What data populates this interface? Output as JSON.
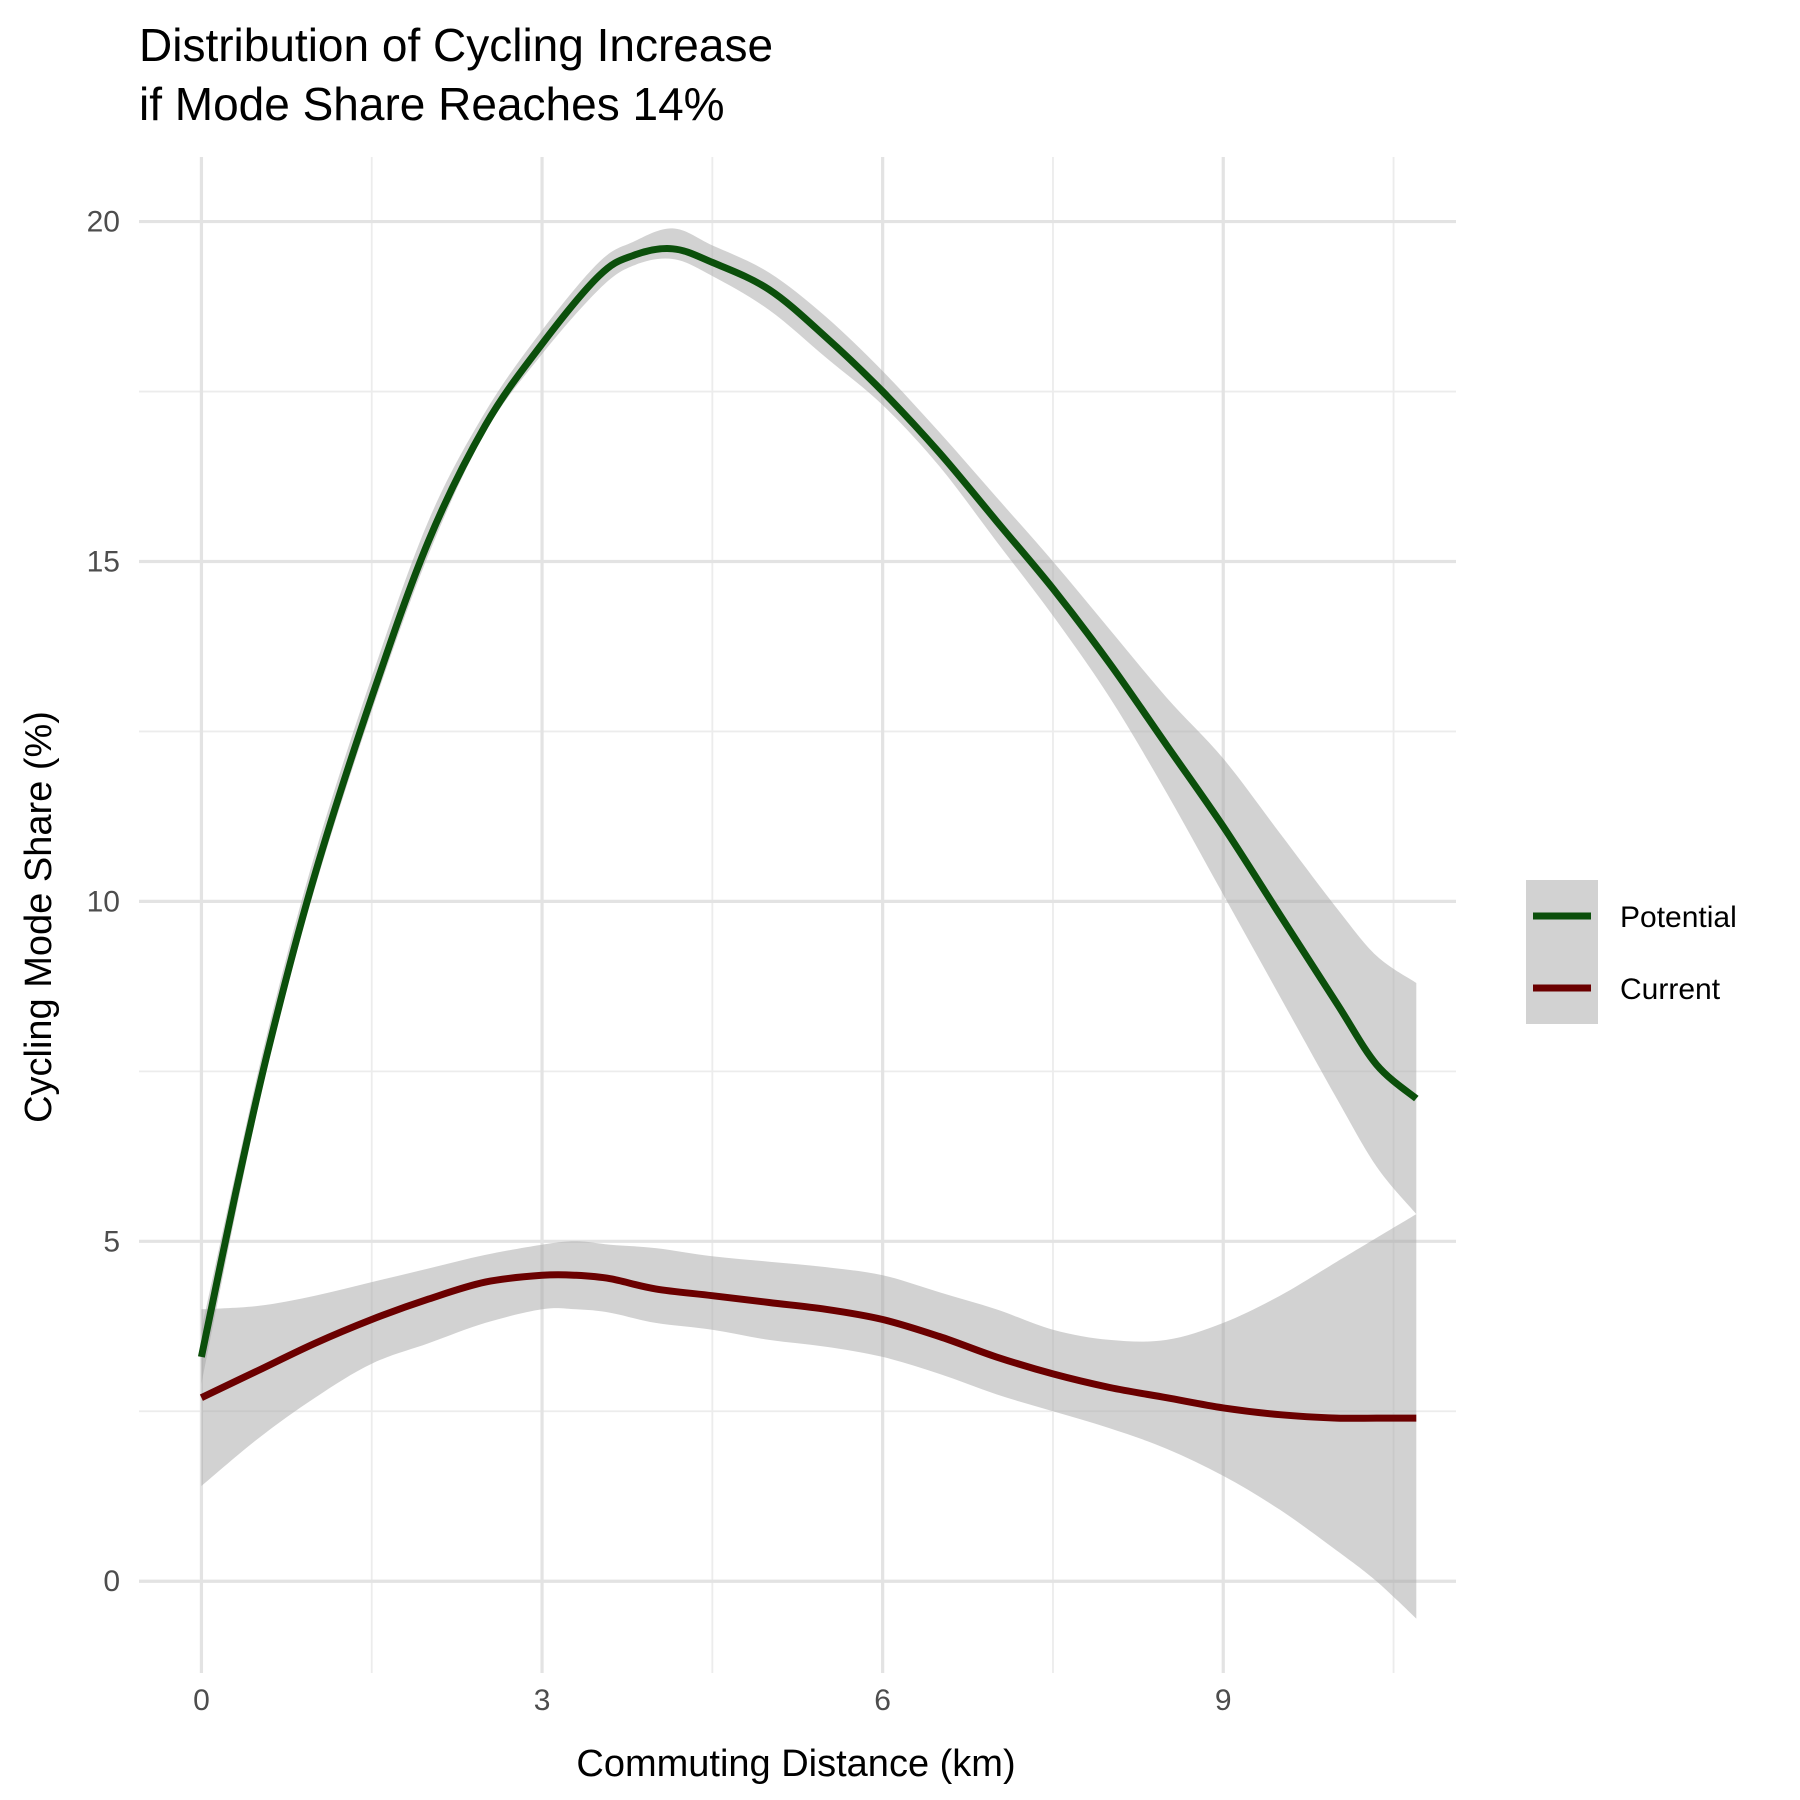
{
  "chart_data": {
    "type": "line",
    "title_lines": [
      "Distribution of Cycling Increase",
      "if Mode Share Reaches 14%"
    ],
    "xlabel": "Commuting Distance (km)",
    "ylabel": "Cycling Mode Share (%)",
    "xlim": [
      -0.55,
      11.05
    ],
    "ylim": [
      -1.35,
      20.95
    ],
    "x_ticks": [
      0,
      3,
      6,
      9
    ],
    "x_minor_ticks": [
      1.5,
      4.5,
      7.5,
      10.5
    ],
    "y_ticks": [
      0,
      5,
      10,
      15,
      20
    ],
    "y_minor_ticks": [
      2.5,
      7.5,
      12.5,
      17.5
    ],
    "grid": true,
    "legend_position": "right",
    "series": [
      {
        "name": "Potential",
        "color": "#0b4f0b",
        "x": [
          0,
          0.3,
          0.6,
          1.0,
          1.5,
          2.0,
          2.5,
          3.0,
          3.5,
          3.8,
          4.15,
          4.5,
          5.0,
          5.5,
          6.0,
          6.5,
          7.0,
          7.5,
          8.0,
          8.5,
          9.0,
          9.5,
          10.0,
          10.35,
          10.7
        ],
        "y": [
          3.3,
          5.7,
          7.9,
          10.4,
          13.0,
          15.3,
          17.0,
          18.2,
          19.2,
          19.5,
          19.6,
          19.4,
          19.0,
          18.3,
          17.5,
          16.6,
          15.6,
          14.6,
          13.5,
          12.3,
          11.1,
          9.8,
          8.5,
          7.6,
          7.1
        ],
        "lower": [
          2.9,
          5.4,
          7.7,
          10.2,
          12.8,
          15.1,
          16.9,
          18.05,
          19.0,
          19.35,
          19.45,
          19.2,
          18.7,
          18.0,
          17.3,
          16.4,
          15.3,
          14.2,
          13.0,
          11.6,
          10.1,
          8.6,
          7.1,
          6.1,
          5.4
        ],
        "upper": [
          3.7,
          6.0,
          8.2,
          10.7,
          13.3,
          15.6,
          17.2,
          18.4,
          19.4,
          19.7,
          19.9,
          19.65,
          19.25,
          18.6,
          17.8,
          16.9,
          15.95,
          15.0,
          14.0,
          13.0,
          12.1,
          11.0,
          9.9,
          9.2,
          8.8
        ]
      },
      {
        "name": "Current",
        "color": "#6b0000",
        "x": [
          0,
          0.5,
          1.0,
          1.5,
          2.0,
          2.5,
          3.0,
          3.3,
          3.6,
          4.0,
          4.5,
          5.0,
          5.5,
          6.0,
          6.5,
          7.0,
          7.5,
          8.0,
          8.5,
          9.0,
          9.5,
          10.0,
          10.35,
          10.7
        ],
        "y": [
          2.7,
          3.1,
          3.5,
          3.85,
          4.15,
          4.4,
          4.5,
          4.5,
          4.45,
          4.3,
          4.2,
          4.1,
          4.0,
          3.85,
          3.6,
          3.3,
          3.05,
          2.85,
          2.7,
          2.55,
          2.45,
          2.4,
          2.4,
          2.4
        ],
        "lower": [
          1.4,
          2.1,
          2.7,
          3.2,
          3.5,
          3.8,
          4.0,
          4.0,
          3.95,
          3.8,
          3.7,
          3.55,
          3.45,
          3.3,
          3.05,
          2.75,
          2.5,
          2.25,
          1.95,
          1.55,
          1.05,
          0.45,
          0.0,
          -0.55
        ],
        "upper": [
          4.0,
          4.05,
          4.2,
          4.4,
          4.6,
          4.8,
          4.95,
          5.0,
          4.95,
          4.9,
          4.78,
          4.7,
          4.62,
          4.5,
          4.25,
          4.0,
          3.7,
          3.55,
          3.55,
          3.8,
          4.2,
          4.7,
          5.05,
          5.4
        ]
      }
    ]
  }
}
